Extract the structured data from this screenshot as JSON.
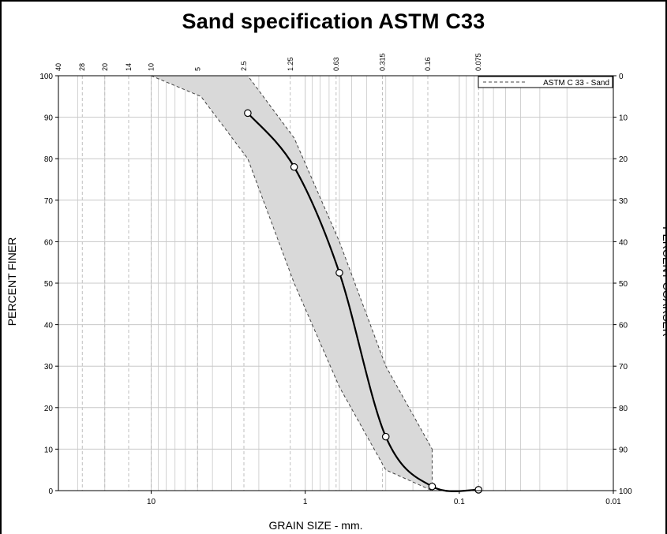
{
  "chart_data": {
    "type": "line",
    "title": "Sand specification ASTM C33",
    "xlabel": "GRAIN SIZE - mm.",
    "ylabel": "PERCENT FINER",
    "ylabel_right": "PERCENT COARSER",
    "x_scale": "log",
    "x_reversed": true,
    "xlim": [
      40,
      0.01
    ],
    "ylim": [
      0,
      100
    ],
    "grid": true,
    "legend_position": "top-right",
    "x_tick_labels": [
      "10",
      "1",
      "0.1",
      "0.01"
    ],
    "x_tick_values": [
      10,
      1,
      0.1,
      0.01
    ],
    "y_ticks": [
      0,
      10,
      20,
      30,
      40,
      50,
      60,
      70,
      80,
      90,
      100
    ],
    "y_ticks_right": [
      "100",
      "90",
      "80",
      "70",
      "60",
      "50",
      "40",
      "30",
      "20",
      "10",
      "0"
    ],
    "sieve_labels": [
      "40",
      "28",
      "20",
      "14",
      "10",
      "5",
      "2.5",
      "1.25",
      "0.63",
      "0.315",
      "0.16",
      "0.075"
    ],
    "sieve_sizes": [
      40,
      28,
      20,
      14,
      10,
      5,
      2.5,
      1.25,
      0.63,
      0.315,
      0.16,
      0.075
    ],
    "series": [
      {
        "name": "ASTM C 33 - Sand",
        "kind": "envelope",
        "upper": {
          "x": [
            10,
            4.75,
            2.36,
            1.18,
            0.6,
            0.3,
            0.15
          ],
          "y": [
            100,
            100,
            100,
            85,
            60,
            30,
            10
          ]
        },
        "lower": {
          "x": [
            10,
            4.75,
            2.36,
            1.18,
            0.6,
            0.3,
            0.15
          ],
          "y": [
            100,
            95,
            80,
            50,
            25,
            5,
            0
          ]
        }
      },
      {
        "kind": "measured",
        "x": [
          2.36,
          1.18,
          0.6,
          0.3,
          0.15,
          0.075
        ],
        "y": [
          91,
          78,
          52.5,
          13,
          1,
          0.2
        ]
      }
    ],
    "colors": {
      "envelope_fill": "#d9d9d9",
      "envelope_line": "#444444",
      "curve": "#000000",
      "grid": "#c8c8c8",
      "marker_fill": "#ffffff"
    }
  }
}
